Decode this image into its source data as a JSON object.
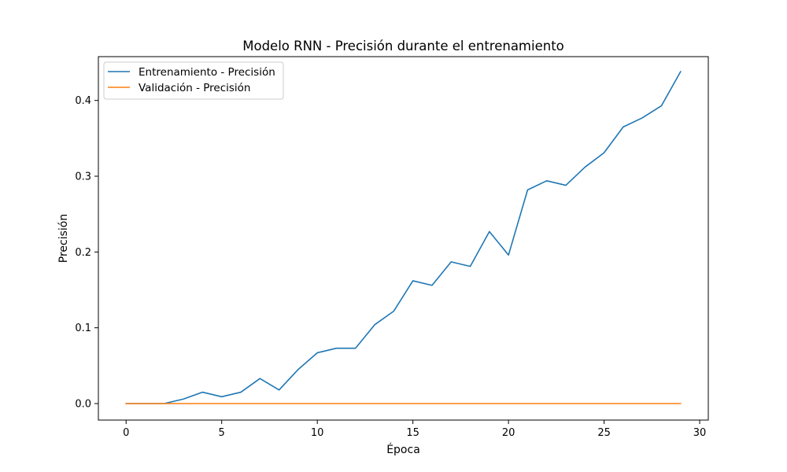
{
  "chart_data": {
    "type": "line",
    "title": "Modelo RNN - Precisión durante el entrenamiento",
    "xlabel": "Época",
    "ylabel": "Precisión",
    "xlim": [
      -1.45,
      30.45
    ],
    "ylim": [
      -0.0218,
      0.4578
    ],
    "xticks": [
      0,
      5,
      10,
      15,
      20,
      25,
      30
    ],
    "xtick_labels": [
      "0",
      "5",
      "10",
      "15",
      "20",
      "25",
      "30"
    ],
    "yticks": [
      0.0,
      0.1,
      0.2,
      0.3,
      0.4
    ],
    "ytick_labels": [
      "0.0",
      "0.1",
      "0.2",
      "0.3",
      "0.4"
    ],
    "grid": false,
    "legend_position": "top-left",
    "x": [
      0,
      1,
      2,
      3,
      4,
      5,
      6,
      7,
      8,
      9,
      10,
      11,
      12,
      13,
      14,
      15,
      16,
      17,
      18,
      19,
      20,
      21,
      22,
      23,
      24,
      25,
      26,
      27,
      28,
      29
    ],
    "series": [
      {
        "name": "Entrenamiento - Precisión",
        "color": "#1f77b4",
        "values": [
          0.0,
          0.0,
          0.0,
          0.006,
          0.015,
          0.009,
          0.015,
          0.033,
          0.018,
          0.045,
          0.067,
          0.073,
          0.073,
          0.104,
          0.122,
          0.162,
          0.156,
          0.187,
          0.181,
          0.227,
          0.196,
          0.282,
          0.294,
          0.288,
          0.312,
          0.331,
          0.365,
          0.377,
          0.393,
          0.438
        ]
      },
      {
        "name": "Validación - Precisión",
        "color": "#ff7f0e",
        "values": [
          0,
          0,
          0,
          0,
          0,
          0,
          0,
          0,
          0,
          0,
          0,
          0,
          0,
          0,
          0,
          0,
          0,
          0,
          0,
          0,
          0,
          0,
          0,
          0,
          0,
          0,
          0,
          0,
          0,
          0
        ]
      }
    ]
  }
}
